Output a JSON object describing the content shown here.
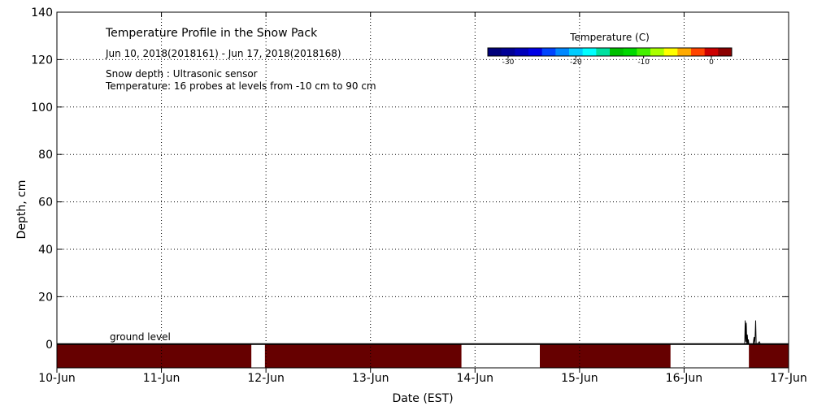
{
  "chart_data": {
    "type": "heatmap",
    "title": "Temperature Profile in the Snow Pack",
    "date_range": "Jun 10, 2018(2018161) - Jun 17, 2018(2018168)",
    "info_lines": [
      "Snow depth : Ultrasonic sensor",
      "Temperature: 16 probes at levels from -10 cm to 90 cm"
    ],
    "ground_label": "ground level",
    "xlabel": "Date (EST)",
    "ylabel": "Depth, cm",
    "xlim": [
      0,
      7
    ],
    "ylim": [
      -10,
      140
    ],
    "x_ticks": [
      {
        "value": 0,
        "label": "10-Jun"
      },
      {
        "value": 1,
        "label": "11-Jun"
      },
      {
        "value": 2,
        "label": "12-Jun"
      },
      {
        "value": 3,
        "label": "13-Jun"
      },
      {
        "value": 4,
        "label": "14-Jun"
      },
      {
        "value": 5,
        "label": "15-Jun"
      },
      {
        "value": 6,
        "label": "16-Jun"
      },
      {
        "value": 7,
        "label": "17-Jun"
      }
    ],
    "y_ticks": [
      0,
      20,
      40,
      60,
      80,
      100,
      120,
      140
    ],
    "grid": true,
    "colorbar": {
      "title": "Temperature (C)",
      "range": [
        -33,
        3
      ],
      "ticks": [
        -30,
        -20,
        -10,
        0
      ],
      "colors": [
        "#00007a",
        "#000096",
        "#0000bb",
        "#0000e6",
        "#0044ff",
        "#0088ff",
        "#00ccff",
        "#00ffff",
        "#00e0a0",
        "#00c000",
        "#00d800",
        "#44f000",
        "#aaff00",
        "#ffff00",
        "#ffaa00",
        "#ff4400",
        "#cc0000",
        "#8b0000"
      ]
    },
    "temperature_bands": [
      {
        "x_start": 0.0,
        "x_end": 1.86,
        "depth_top": 0,
        "depth_bottom": -10,
        "color": "#660000"
      },
      {
        "x_start": 1.99,
        "x_end": 3.87,
        "depth_top": 0,
        "depth_bottom": -10,
        "color": "#660000"
      },
      {
        "x_start": 4.62,
        "x_end": 5.87,
        "depth_top": 0,
        "depth_bottom": -10,
        "color": "#660000"
      },
      {
        "x_start": 6.62,
        "x_end": 7.0,
        "depth_top": 0,
        "depth_bottom": -10,
        "color": "#660000"
      }
    ],
    "snow_depth": {
      "x": [
        6.0,
        6.58,
        6.585,
        6.59,
        6.595,
        6.6,
        6.605,
        6.61,
        6.615,
        6.62,
        6.66,
        6.67,
        6.675,
        6.68,
        6.685,
        6.69,
        6.7,
        6.72,
        6.73,
        6.74,
        6.76,
        7.0
      ],
      "y": [
        0,
        0,
        10,
        1,
        9,
        0,
        4,
        0,
        2,
        0,
        0,
        3,
        0,
        4,
        10,
        0,
        0,
        1,
        0,
        0,
        0,
        0
      ]
    }
  }
}
